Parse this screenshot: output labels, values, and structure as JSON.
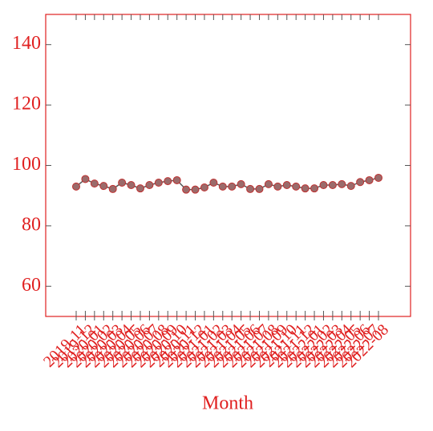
{
  "chart_data": {
    "type": "line",
    "x_label": "Month",
    "categories": [
      "2019-11",
      "2019-12",
      "2020-01",
      "2020-02",
      "2020-03",
      "2020-04",
      "2020-05",
      "2020-06",
      "2020-07",
      "2020-08",
      "2020-09",
      "2020-10",
      "2020-11",
      "2020-12",
      "2021-01",
      "2021-02",
      "2021-03",
      "2021-04",
      "2021-05",
      "2021-06",
      "2021-07",
      "2021-08",
      "2021-09",
      "2021-10",
      "2021-11",
      "2021-12",
      "2022-01",
      "2022-02",
      "2022-03",
      "2022-04",
      "2022-05",
      "2022-06",
      "2022-07",
      "2022-08"
    ],
    "series": [
      {
        "color": "#555555",
        "marker_color": "#9b6b6b",
        "marker_edge": "#c03030",
        "values": [
          93,
          95.5,
          94,
          93.2,
          92.2,
          94.3,
          93.5,
          92.4,
          93.5,
          94.3,
          94.8,
          95.1,
          92,
          92,
          92.7,
          94.3,
          93,
          93,
          93.8,
          92.2,
          92.2,
          93.8,
          93,
          93.5,
          93,
          92.4,
          92.4,
          93.5,
          93.5,
          93.8,
          93.2,
          94.5,
          95.1,
          95.9
        ]
      }
    ],
    "ylim": [
      50,
      150
    ],
    "yticks": [
      60,
      80,
      100,
      120,
      140
    ],
    "axis_color": "#e02020",
    "grid": false
  }
}
